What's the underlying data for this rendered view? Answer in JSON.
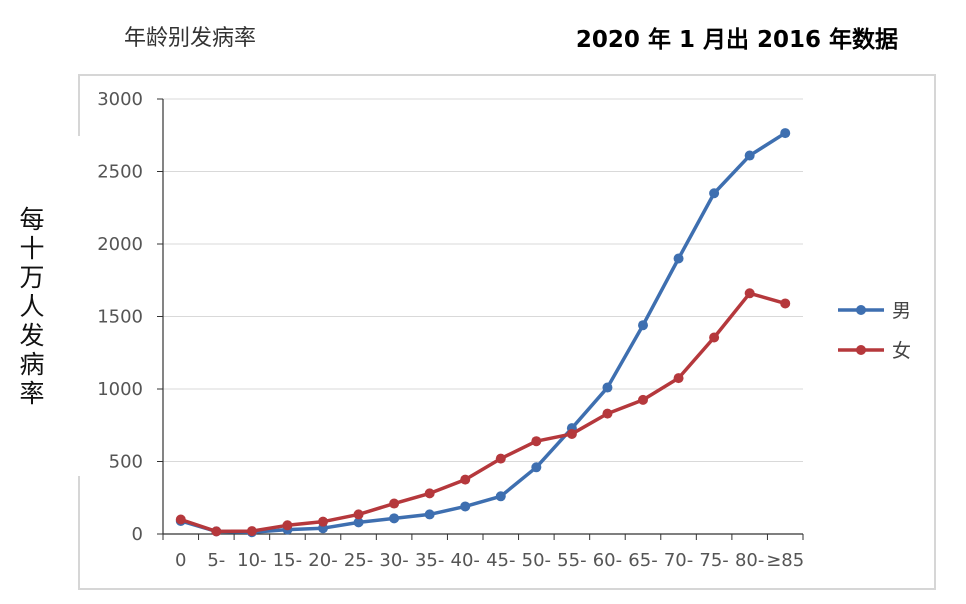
{
  "chart_data": {
    "type": "line",
    "title": "年龄别发病率",
    "subtitle": "2020 年 1 月出 2016 年数据",
    "ylabel_chars": [
      "每",
      "十",
      "万",
      "人",
      "发",
      "病",
      "率"
    ],
    "xlabel": "",
    "categories": [
      "0",
      "5-",
      "10-",
      "15-",
      "20-",
      "25-",
      "30-",
      "35-",
      "40-",
      "45-",
      "50-",
      "55-",
      "60-",
      "65-",
      "70-",
      "75-",
      "80-",
      "≥85"
    ],
    "yticks": [
      "0",
      "500",
      "1000",
      "1500",
      "2000",
      "2500",
      "3000"
    ],
    "ylim": [
      0,
      3000
    ],
    "grid": true,
    "legend": "right",
    "series": [
      {
        "name": "男",
        "color": "#3E6FB0",
        "values": [
          90,
          18,
          12,
          30,
          40,
          80,
          108,
          135,
          190,
          260,
          460,
          730,
          1010,
          1440,
          1900,
          2350,
          2610,
          2765
        ]
      },
      {
        "name": "女",
        "color": "#B5383C",
        "values": [
          100,
          18,
          20,
          60,
          85,
          135,
          210,
          280,
          375,
          520,
          640,
          690,
          830,
          925,
          1075,
          1355,
          1660,
          1590
        ]
      }
    ]
  }
}
